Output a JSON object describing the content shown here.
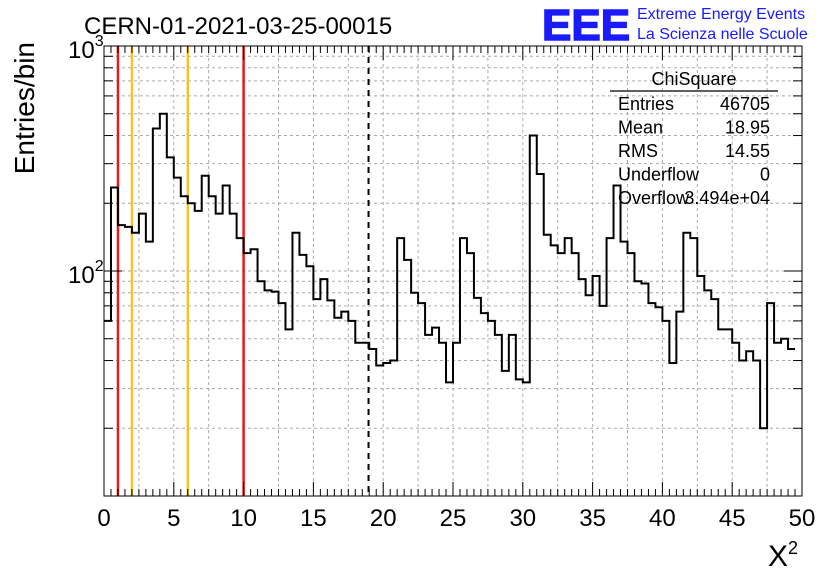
{
  "chart_data": {
    "type": "histogram",
    "title": "CERN-01-2021-03-25-00015",
    "xlabel": "X",
    "xlabel_superscript": "2",
    "ylabel": "Entries/bin",
    "xlim": [
      0,
      50
    ],
    "ylim": [
      10,
      1000
    ],
    "y_scale": "log",
    "grid": true,
    "x_ticks": [
      0,
      5,
      10,
      15,
      20,
      25,
      30,
      35,
      40,
      45,
      50
    ],
    "y_tick_labels": [
      {
        "base": "10",
        "exp": "2",
        "value": 100
      },
      {
        "base": "10",
        "exp": "3",
        "value": 1000
      }
    ],
    "bin_width": 0.5,
    "bins": [
      [
        0.0,
        60
      ],
      [
        0.5,
        235
      ],
      [
        1.0,
        160
      ],
      [
        1.5,
        157
      ],
      [
        2.0,
        148
      ],
      [
        2.5,
        180
      ],
      [
        3.0,
        135
      ],
      [
        3.5,
        430
      ],
      [
        4.0,
        500
      ],
      [
        4.5,
        320
      ],
      [
        5.0,
        260
      ],
      [
        5.5,
        215
      ],
      [
        6.0,
        200
      ],
      [
        6.5,
        185
      ],
      [
        7.0,
        265
      ],
      [
        7.5,
        215
      ],
      [
        8.0,
        180
      ],
      [
        8.5,
        240
      ],
      [
        9.0,
        180
      ],
      [
        9.5,
        140
      ],
      [
        10.0,
        120
      ],
      [
        10.5,
        125
      ],
      [
        11.0,
        90
      ],
      [
        11.5,
        82
      ],
      [
        12.0,
        81
      ],
      [
        12.5,
        72
      ],
      [
        13.0,
        55
      ],
      [
        13.5,
        148
      ],
      [
        14.0,
        118
      ],
      [
        14.5,
        105
      ],
      [
        15.0,
        75
      ],
      [
        15.5,
        92
      ],
      [
        16.0,
        74
      ],
      [
        16.5,
        62
      ],
      [
        17.0,
        66
      ],
      [
        17.5,
        60
      ],
      [
        18.0,
        48
      ],
      [
        18.5,
        48
      ],
      [
        19.0,
        45
      ],
      [
        19.5,
        38
      ],
      [
        20.0,
        39
      ],
      [
        20.5,
        40
      ],
      [
        21.0,
        140
      ],
      [
        21.5,
        112
      ],
      [
        22.0,
        80
      ],
      [
        22.5,
        72
      ],
      [
        23.0,
        52
      ],
      [
        23.5,
        56
      ],
      [
        24.0,
        48
      ],
      [
        24.5,
        32
      ],
      [
        25.0,
        48
      ],
      [
        25.5,
        140
      ],
      [
        26.0,
        120
      ],
      [
        26.5,
        76
      ],
      [
        27.0,
        65
      ],
      [
        27.5,
        60
      ],
      [
        28.0,
        52
      ],
      [
        28.5,
        36
      ],
      [
        29.0,
        52
      ],
      [
        29.5,
        33
      ],
      [
        30.0,
        32
      ],
      [
        30.5,
        400
      ],
      [
        31.0,
        270
      ],
      [
        31.5,
        145
      ],
      [
        32.0,
        130
      ],
      [
        32.5,
        120
      ],
      [
        33.0,
        140
      ],
      [
        33.5,
        120
      ],
      [
        34.0,
        92
      ],
      [
        34.5,
        78
      ],
      [
        35.0,
        95
      ],
      [
        35.5,
        70
      ],
      [
        36.0,
        140
      ],
      [
        36.5,
        240
      ],
      [
        37.0,
        135
      ],
      [
        37.5,
        120
      ],
      [
        38.0,
        90
      ],
      [
        38.5,
        88
      ],
      [
        39.0,
        72
      ],
      [
        39.5,
        69
      ],
      [
        40.0,
        60
      ],
      [
        40.5,
        39
      ],
      [
        41.0,
        66
      ],
      [
        41.5,
        148
      ],
      [
        42.0,
        140
      ],
      [
        42.5,
        95
      ],
      [
        43.0,
        82
      ],
      [
        43.5,
        75
      ],
      [
        44.0,
        55
      ],
      [
        44.5,
        55
      ],
      [
        45.0,
        48
      ],
      [
        45.5,
        40
      ],
      [
        46.0,
        44
      ],
      [
        46.5,
        40
      ],
      [
        47.0,
        20
      ],
      [
        47.5,
        72
      ],
      [
        48.0,
        48
      ],
      [
        48.5,
        50
      ],
      [
        49.0,
        45
      ]
    ],
    "vertical_lines": [
      {
        "x": 1,
        "color": "#e41a1c",
        "style": "solid"
      },
      {
        "x": 2,
        "color": "#f4c430",
        "style": "solid"
      },
      {
        "x": 6,
        "color": "#f4c430",
        "style": "solid"
      },
      {
        "x": 10,
        "color": "#e41a1c",
        "style": "solid"
      },
      {
        "x": 18.95,
        "color": "#000000",
        "style": "dashed"
      }
    ],
    "stats_box": {
      "title": "ChiSquare",
      "rows": [
        {
          "label": "Entries",
          "value": "46705"
        },
        {
          "label": "Mean",
          "value": "18.95"
        },
        {
          "label": "RMS",
          "value": "14.55"
        },
        {
          "label": "Underflow",
          "value": "0"
        },
        {
          "label": "Overflow",
          "value": "3.494e+04"
        }
      ]
    }
  },
  "logo": {
    "text": "EEE",
    "line1": "Extreme Energy Events",
    "line2": "La Scienza nelle Scuole",
    "color": "#1a1aff"
  }
}
